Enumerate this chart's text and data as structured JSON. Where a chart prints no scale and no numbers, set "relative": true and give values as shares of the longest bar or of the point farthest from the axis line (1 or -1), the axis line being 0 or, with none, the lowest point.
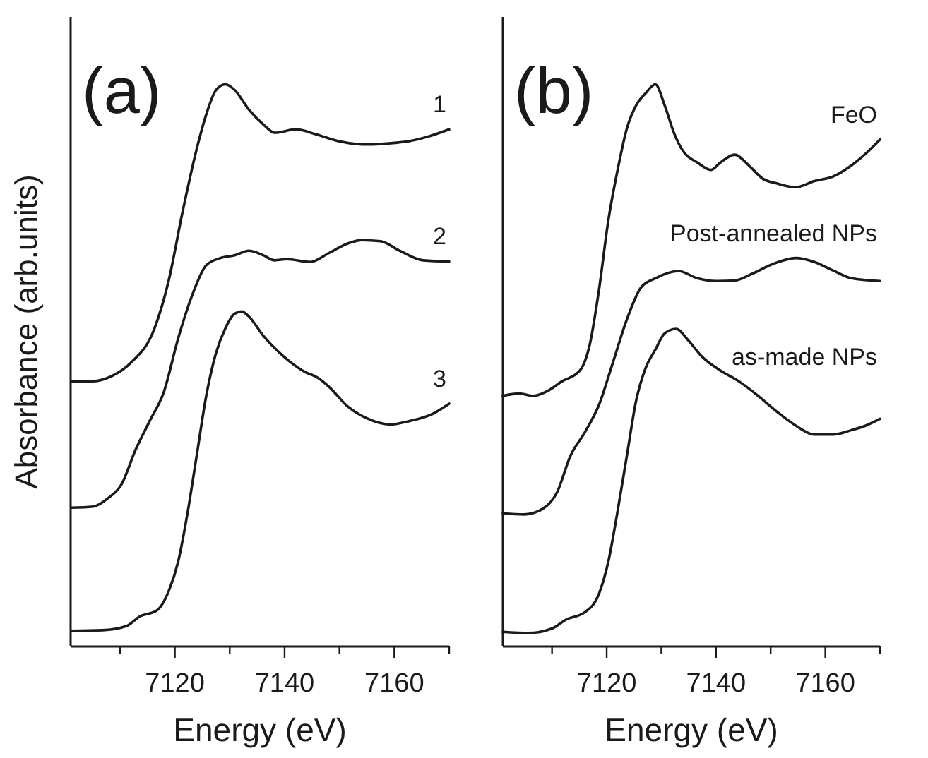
{
  "chart_data": [
    {
      "type": "line",
      "title": "(a)",
      "xlabel": "Energy (eV)",
      "ylabel": "Absorbance (arb.units)",
      "relative": true,
      "xlim": [
        7101,
        7170
      ],
      "xticks": [
        {
          "value": 7110,
          "label": null
        },
        7120,
        {
          "value": 7130,
          "label": null
        },
        7140,
        {
          "value": 7150,
          "label": null
        },
        7160,
        {
          "value": 7170,
          "label": null
        }
      ],
      "series": [
        {
          "name": "1",
          "color": "#1a1a1a",
          "x": [
            7101.1,
            7105.1,
            7108.5,
            7112.0,
            7116.3,
            7118.9,
            7121.4,
            7124.0,
            7125.7,
            7127.5,
            7129.2,
            7130.9,
            7133.5,
            7136.1,
            7138.2,
            7142.1,
            7145.5,
            7149.8,
            7155.0,
            7160.1,
            7162.7,
            7166.1,
            7170.0
          ],
          "values": [
            0.472,
            0.472,
            0.481,
            0.505,
            0.566,
            0.652,
            0.773,
            0.886,
            0.946,
            0.99,
            1,
            0.99,
            0.955,
            0.929,
            0.914,
            0.92,
            0.912,
            0.899,
            0.893,
            0.896,
            0.899,
            0.907,
            0.92
          ]
        },
        {
          "name": "2",
          "color": "#1a1a1a",
          "x": [
            7101.1,
            7105.1,
            7107.7,
            7110.3,
            7112.8,
            7115.4,
            7118.0,
            7120.6,
            7123.2,
            7125.7,
            7128.3,
            7130.9,
            7133.5,
            7136.1,
            7138.2,
            7140.4,
            7144.7,
            7148.1,
            7151.5,
            7154.1,
            7157.5,
            7161.0,
            7165.3,
            7170.0
          ],
          "values": [
            0.247,
            0.249,
            0.263,
            0.289,
            0.349,
            0.401,
            0.453,
            0.548,
            0.626,
            0.678,
            0.691,
            0.696,
            0.704,
            0.696,
            0.687,
            0.689,
            0.684,
            0.7,
            0.717,
            0.723,
            0.721,
            0.704,
            0.687,
            0.685
          ]
        },
        {
          "name": "3",
          "color": "#1a1a1a",
          "x": [
            7101.1,
            7106.8,
            7111.1,
            7113.7,
            7116.7,
            7118.9,
            7120.6,
            7122.3,
            7124.0,
            7125.7,
            7127.5,
            7129.2,
            7130.9,
            7132.2,
            7133.5,
            7136.1,
            7138.6,
            7141.2,
            7143.8,
            7145.9,
            7148.1,
            7151.5,
            7155.0,
            7159.3,
            7162.7,
            7167.0,
            7170.0
          ],
          "values": [
            0.028,
            0.029,
            0.036,
            0.054,
            0.064,
            0.099,
            0.151,
            0.237,
            0.341,
            0.445,
            0.522,
            0.566,
            0.592,
            0.596,
            0.587,
            0.553,
            0.527,
            0.505,
            0.488,
            0.479,
            0.462,
            0.427,
            0.406,
            0.395,
            0.401,
            0.414,
            0.432
          ]
        }
      ]
    },
    {
      "type": "line",
      "title": "(b)",
      "xlabel": "Energy (eV)",
      "relative": true,
      "xlim": [
        7101,
        7170
      ],
      "xticks": [
        {
          "value": 7110,
          "label": null
        },
        7120,
        {
          "value": 7130,
          "label": null
        },
        7140,
        {
          "value": 7150,
          "label": null
        },
        7160,
        {
          "value": 7170,
          "label": null
        }
      ],
      "series": [
        {
          "name": "FeO",
          "color": "#1a1a1a",
          "x": [
            7101,
            7104.0,
            7106.6,
            7109.1,
            7111.7,
            7115.1,
            7116.9,
            7118.6,
            7120.3,
            7122.0,
            7123.7,
            7125.4,
            7127.1,
            7128.9,
            7130.6,
            7132.3,
            7134.0,
            7136.6,
            7139.1,
            7140.8,
            7143.4,
            7146.0,
            7148.6,
            7151.1,
            7154.6,
            7158.0,
            7161.4,
            7164.8,
            7167.4,
            7170.0
          ],
          "values": [
            0.446,
            0.45,
            0.446,
            0.454,
            0.471,
            0.491,
            0.537,
            0.635,
            0.758,
            0.848,
            0.922,
            0.963,
            0.984,
            1,
            0.963,
            0.914,
            0.881,
            0.861,
            0.848,
            0.861,
            0.875,
            0.856,
            0.832,
            0.824,
            0.817,
            0.828,
            0.836,
            0.856,
            0.877,
            0.902
          ]
        },
        {
          "name": "Post-annealed NPs",
          "color": "#1a1a1a",
          "x": [
            7101,
            7104.9,
            7108.3,
            7110.9,
            7113.4,
            7116.0,
            7118.6,
            7121.1,
            7123.7,
            7126.3,
            7128.9,
            7133.1,
            7136.6,
            7140.0,
            7143.4,
            7146.8,
            7150.3,
            7154.6,
            7158.0,
            7161.4,
            7164.8,
            7170.0
          ],
          "values": [
            0.237,
            0.235,
            0.245,
            0.274,
            0.34,
            0.381,
            0.43,
            0.504,
            0.582,
            0.639,
            0.655,
            0.668,
            0.655,
            0.65,
            0.651,
            0.664,
            0.68,
            0.691,
            0.684,
            0.669,
            0.655,
            0.65
          ]
        },
        {
          "name": "as-made NPs",
          "color": "#1a1a1a",
          "x": [
            7101,
            7105.7,
            7110.0,
            7112.6,
            7116.0,
            7118.6,
            7120.3,
            7122.0,
            7123.7,
            7125.4,
            7127.1,
            7128.9,
            7130.6,
            7132.7,
            7134.9,
            7137.4,
            7140.8,
            7144.3,
            7147.7,
            7151.1,
            7154.6,
            7158.0,
            7161.4,
            7164.8,
            7167.4,
            7170.0
          ],
          "values": [
            0.026,
            0.024,
            0.032,
            0.048,
            0.061,
            0.094,
            0.151,
            0.241,
            0.34,
            0.438,
            0.495,
            0.528,
            0.557,
            0.565,
            0.545,
            0.516,
            0.491,
            0.471,
            0.446,
            0.418,
            0.393,
            0.377,
            0.377,
            0.385,
            0.393,
            0.405
          ]
        }
      ]
    }
  ]
}
